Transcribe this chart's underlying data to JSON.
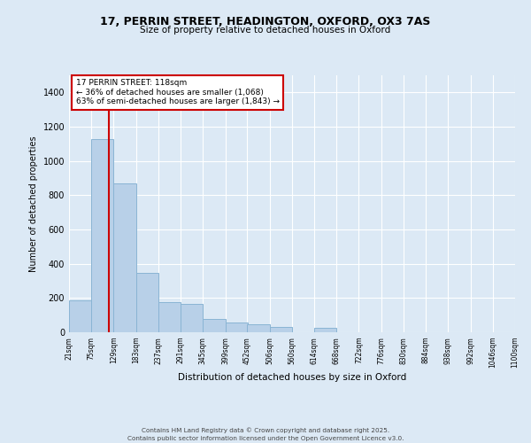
{
  "title_line1": "17, PERRIN STREET, HEADINGTON, OXFORD, OX3 7AS",
  "title_line2": "Size of property relative to detached houses in Oxford",
  "xlabel": "Distribution of detached houses by size in Oxford",
  "ylabel": "Number of detached properties",
  "bar_color": "#b8d0e8",
  "bar_edge_color": "#8ab4d4",
  "background_color": "#dce9f5",
  "plot_bg_color": "#dce9f5",
  "annotation_box_color": "#cc0000",
  "vline_color": "#cc0000",
  "annotation_text_line1": "17 PERRIN STREET: 118sqm",
  "annotation_text_line2": "← 36% of detached houses are smaller (1,068)",
  "annotation_text_line3": "63% of semi-detached houses are larger (1,843) →",
  "property_size": 118,
  "footer_line1": "Contains HM Land Registry data © Crown copyright and database right 2025.",
  "footer_line2": "Contains public sector information licensed under the Open Government Licence v3.0.",
  "bin_edges": [
    21,
    75,
    129,
    183,
    237,
    291,
    345,
    399,
    452,
    506,
    560,
    614,
    668,
    722,
    776,
    830,
    884,
    938,
    992,
    1046,
    1100
  ],
  "bin_labels": [
    "21sqm",
    "75sqm",
    "129sqm",
    "183sqm",
    "237sqm",
    "291sqm",
    "345sqm",
    "399sqm",
    "452sqm",
    "506sqm",
    "560sqm",
    "614sqm",
    "668sqm",
    "722sqm",
    "776sqm",
    "830sqm",
    "884sqm",
    "938sqm",
    "992sqm",
    "1046sqm",
    "1100sqm"
  ],
  "bar_heights": [
    185,
    1130,
    870,
    345,
    175,
    165,
    80,
    55,
    45,
    30,
    0,
    25,
    0,
    0,
    0,
    0,
    0,
    0,
    0,
    0
  ],
  "ylim": [
    0,
    1500
  ],
  "yticks": [
    0,
    200,
    400,
    600,
    800,
    1000,
    1200,
    1400
  ],
  "grid_color": "#ffffff",
  "spine_color": "#aaaaaa"
}
